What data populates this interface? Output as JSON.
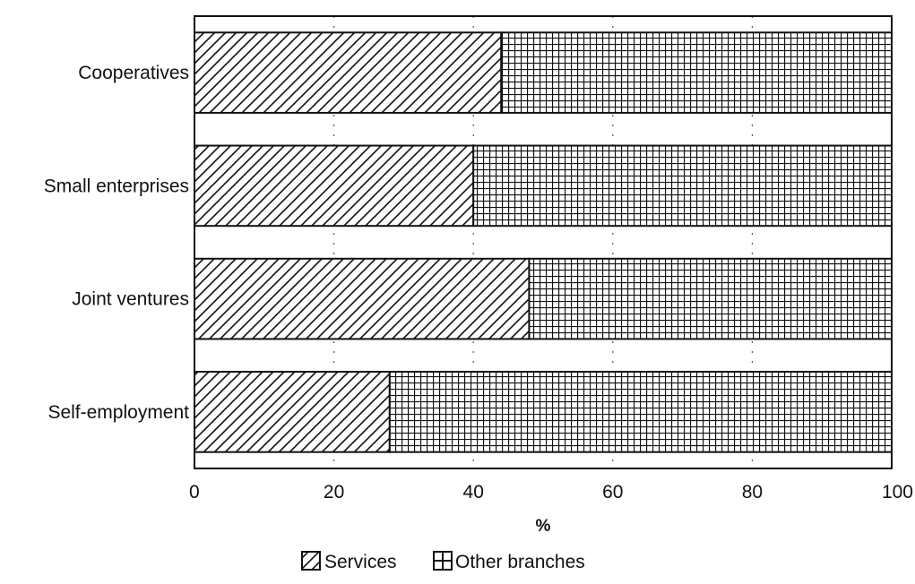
{
  "chart_data": {
    "type": "bar",
    "orientation": "horizontal",
    "stacked": true,
    "percent": true,
    "categories": [
      "Cooperatives",
      "Small enterprises",
      "Joint ventures",
      "Self-employment"
    ],
    "series": [
      {
        "name": "Services",
        "values": [
          44,
          40,
          48,
          28
        ],
        "pattern": "diagonal-hatch"
      },
      {
        "name": "Other branches",
        "values": [
          56,
          60,
          52,
          72
        ],
        "pattern": "grid-hatch"
      }
    ],
    "xlabel": "%",
    "xlim": [
      0,
      100
    ],
    "xticks": [
      0,
      20,
      40,
      60,
      80,
      100
    ],
    "grid": "vertical dotted",
    "legend": "bottom-center"
  },
  "colors": {
    "ink": "#111111",
    "background": "#ffffff"
  }
}
